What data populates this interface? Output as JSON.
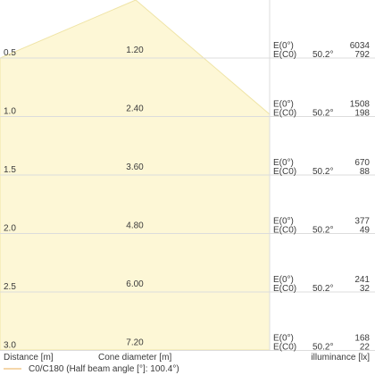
{
  "diagram": {
    "rows": [
      {
        "distance": "0.5",
        "cone_diameter": "1.20",
        "e0_label": "E(0°)",
        "ec0_label": "E(C0)",
        "angle": "50.2°",
        "e0_value": "6034",
        "ec0_value": "792"
      },
      {
        "distance": "1.0",
        "cone_diameter": "2.40",
        "e0_label": "E(0°)",
        "ec0_label": "E(C0)",
        "angle": "50.2°",
        "e0_value": "1508",
        "ec0_value": "198"
      },
      {
        "distance": "1.5",
        "cone_diameter": "3.60",
        "e0_label": "E(0°)",
        "ec0_label": "E(C0)",
        "angle": "50.2°",
        "e0_value": "670",
        "ec0_value": "88"
      },
      {
        "distance": "2.0",
        "cone_diameter": "4.80",
        "e0_label": "E(0°)",
        "ec0_label": "E(C0)",
        "angle": "50.2°",
        "e0_value": "377",
        "ec0_value": "49"
      },
      {
        "distance": "2.5",
        "cone_diameter": "6.00",
        "e0_label": "E(0°)",
        "ec0_label": "E(C0)",
        "angle": "50.2°",
        "e0_value": "241",
        "ec0_value": "32"
      },
      {
        "distance": "3.0",
        "cone_diameter": "7.20",
        "e0_label": "E(0°)",
        "ec0_label": "E(C0)",
        "angle": "50.2°",
        "e0_value": "168",
        "ec0_value": "22"
      }
    ],
    "headers": {
      "distance": "Distance [m]",
      "cone_diameter": "Cone diameter [m]",
      "illuminance": "illuminance [lx]"
    },
    "legend": {
      "label": "C0/C180 (Half beam angle [°]: 100.4°)"
    },
    "colors": {
      "cone_fill": "#fdf7d6",
      "cone_stroke": "#efe4a6",
      "grid": "#dcdcdc",
      "legend_line": "#f2c98e"
    }
  }
}
